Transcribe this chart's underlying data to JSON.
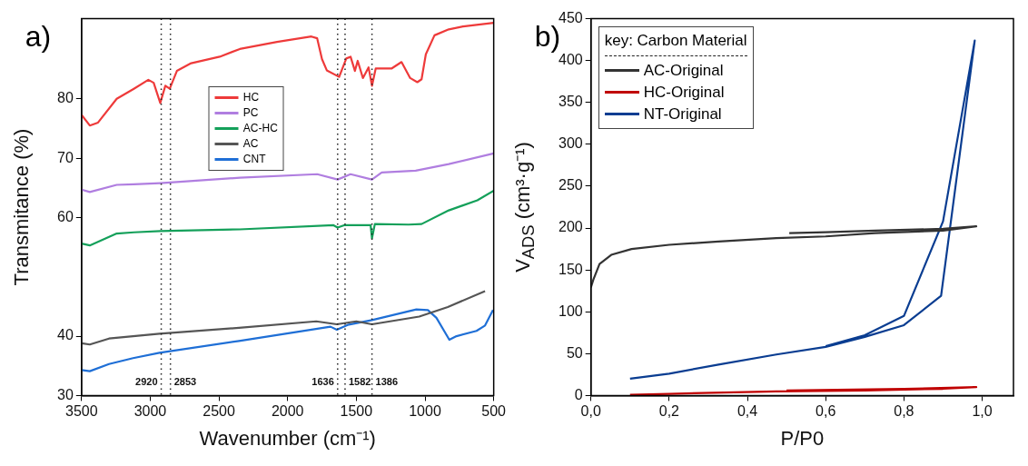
{
  "chart_data": [
    {
      "type": "line",
      "title": "a)",
      "xlabel": "Wavenumber (cm⁻¹)",
      "ylabel": "Transmitance (%)",
      "xlim": [
        3500,
        500
      ],
      "xticks": [
        3500,
        3000,
        2500,
        2000,
        1500,
        1000,
        500
      ],
      "ylim": [
        30,
        93.5
      ],
      "yticks": [
        30,
        40,
        60,
        70,
        80
      ],
      "legend": "top",
      "series": [
        {
          "name": "HC",
          "color": "#ee3a3a",
          "x": [
            3500,
            3440,
            3380,
            3244,
            3119,
            3014,
            2975,
            2927,
            2890,
            2858,
            2806,
            2702,
            2494,
            2348,
            2077,
            1827,
            1785,
            1750,
            1715,
            1625,
            1573,
            1542,
            1510,
            1490,
            1452,
            1411,
            1386,
            1359,
            1244,
            1171,
            1108,
            1056,
            1025,
            994,
            931,
            827,
            723,
            500
          ],
          "values": [
            77.3,
            75.5,
            76,
            80,
            81.7,
            83.2,
            82.7,
            79.3,
            82.2,
            81.7,
            84.7,
            86,
            87.1,
            88.4,
            89.6,
            90.5,
            90.2,
            86.7,
            84.8,
            83.7,
            86.8,
            87.1,
            84.7,
            86.4,
            83.5,
            85.3,
            82.2,
            85.1,
            85.1,
            86.2,
            83.5,
            82.8,
            83.3,
            87.5,
            90.7,
            91.7,
            92.2,
            92.8
          ]
        },
        {
          "name": "PC",
          "color": "#b07ee0",
          "x": [
            3500,
            3440,
            3244,
            3119,
            2927,
            2348,
            1785,
            1636,
            1542,
            1386,
            1315,
            1068,
            827,
            500
          ],
          "values": [
            64.7,
            64.3,
            65.5,
            65.6,
            65.8,
            66.7,
            67.3,
            66.4,
            67.3,
            66.4,
            67.6,
            67.9,
            69,
            70.8
          ]
        },
        {
          "name": "AC-HC",
          "color": "#14a05a",
          "x": [
            3500,
            3440,
            3244,
            3119,
            2927,
            2348,
            1666,
            1636,
            1589,
            1396,
            1386,
            1365,
            1119,
            1025,
            827,
            619,
            500
          ],
          "values": [
            55.6,
            55.3,
            57.3,
            57.5,
            57.7,
            58,
            58.7,
            58.3,
            58.7,
            58.7,
            56.5,
            58.9,
            58.8,
            58.9,
            61.2,
            62.9,
            64.5
          ]
        },
        {
          "name": "AC",
          "color": "#555555",
          "x": [
            3500,
            3440,
            3300,
            3125,
            2933,
            2354,
            1792,
            1642,
            1500,
            1386,
            1042,
            834,
            563
          ],
          "values": [
            38.8,
            38.6,
            39.6,
            40,
            40.4,
            41.4,
            42.5,
            42,
            42.5,
            42,
            43.3,
            44.9,
            47.6
          ]
        },
        {
          "name": "CNT",
          "color": "#1f6fd6",
          "x": [
            3500,
            3440,
            3300,
            3125,
            2933,
            2354,
            1688,
            1642,
            1563,
            1386,
            1063,
            979,
            917,
            823,
            771,
            625,
            563,
            505
          ],
          "values": [
            34.3,
            34.1,
            35.3,
            36.3,
            37.2,
            39.2,
            41.6,
            41.1,
            41.9,
            42.7,
            44.5,
            44.4,
            43.1,
            39.4,
            40,
            40.9,
            41.8,
            44.4
          ]
        }
      ],
      "ref_lines": [
        {
          "axis": "x",
          "value": 2920,
          "label": "2920",
          "line_style": "dotted"
        },
        {
          "axis": "x",
          "value": 2853,
          "label": "2853",
          "line_style": "dotted"
        },
        {
          "axis": "x",
          "value": 1636,
          "label": "1636",
          "line_style": "dotted"
        },
        {
          "axis": "x",
          "value": 1582,
          "label": "1582",
          "line_style": "dotted"
        },
        {
          "axis": "x",
          "value": 1386,
          "label": "1386",
          "line_style": "dotted"
        }
      ]
    },
    {
      "type": "line",
      "title": "b)",
      "xlabel": "P/P0",
      "ylabel": "V$_{ADS}$ (cm³·g⁻¹)",
      "xlim": [
        0,
        1.08
      ],
      "xticks": [
        {
          "value": 0,
          "label": "0,0"
        },
        {
          "value": 0.2,
          "label": "0,2"
        },
        {
          "value": 0.4,
          "label": "0,4"
        },
        {
          "value": 0.6,
          "label": "0,6"
        },
        {
          "value": 0.8,
          "label": "0,8"
        },
        {
          "value": 1,
          "label": "1,0"
        }
      ],
      "ylim": [
        0,
        450
      ],
      "yticks": [
        0,
        50,
        100,
        150,
        200,
        250,
        300,
        350,
        400,
        450
      ],
      "legend": "top left",
      "legend_title": "key: Carbon Material",
      "series": [
        {
          "name": "AC-Original",
          "color": "#333333",
          "x": [
            0,
            0.006,
            0.022,
            0.052,
            0.104,
            0.2,
            0.326,
            0.474,
            0.6,
            0.726,
            0.9,
            0.985,
            0.9,
            0.726,
            0.6,
            0.507
          ],
          "values": [
            129,
            138,
            157,
            168,
            175,
            180,
            184,
            188,
            190,
            194,
            197,
            202,
            199,
            197,
            195,
            194
          ]
        },
        {
          "name": "HC-Original",
          "color": "#c00000",
          "x": [
            0.1,
            0.2,
            0.474,
            0.7,
            0.9,
            0.985,
            0.8,
            0.5
          ],
          "values": [
            1,
            2,
            5,
            6,
            8,
            10,
            8,
            6
          ]
        },
        {
          "name": "NT-Original",
          "color": "#0a3d91",
          "x": [
            0.1,
            0.2,
            0.326,
            0.474,
            0.6,
            0.7,
            0.8,
            0.895,
            0.981,
            0.9,
            0.8,
            0.7,
            0.6
          ],
          "values": [
            20,
            26,
            37,
            49,
            58,
            70,
            84,
            119,
            424,
            208,
            95,
            72,
            59
          ]
        }
      ]
    }
  ]
}
